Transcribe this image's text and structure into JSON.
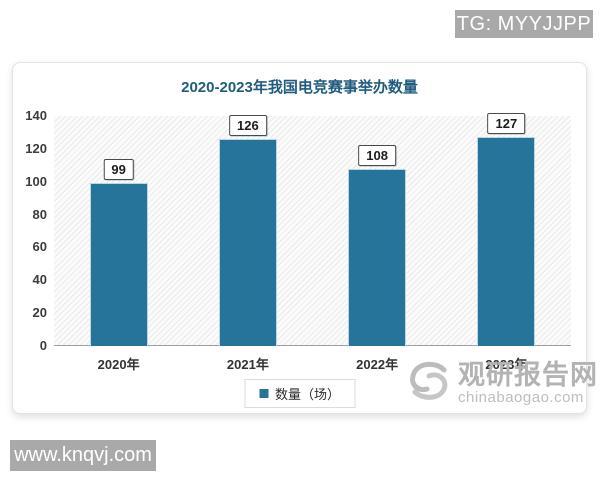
{
  "watermarks": {
    "tg_badge": "TG: MYYJJPP",
    "site_badge": "www.knqvj.com",
    "brand_name": "观研报告网",
    "brand_domain": "chinabaogao.com",
    "brand_logo": "swirl-logo"
  },
  "chart_data": {
    "type": "bar",
    "title": "2020-2023年我国电竞赛事举办数量",
    "categories": [
      "2020年",
      "2021年",
      "2022年",
      "2023年"
    ],
    "values": [
      99,
      126,
      108,
      127
    ],
    "series_name": "数量（场）",
    "xlabel": "",
    "ylabel": "",
    "ylim": [
      0,
      140
    ],
    "yticks": [
      0,
      20,
      40,
      60,
      80,
      100,
      120,
      140
    ],
    "grid": false,
    "legend_position": "bottom",
    "data_labels": "boxed values above bars",
    "plot_background": "diagonal-hatch",
    "colors": {
      "bar": "#27749b",
      "title": "#1f5c7d",
      "badge_gray": "#a9a9a9",
      "watermark_gray": "#b3b3b3"
    }
  }
}
